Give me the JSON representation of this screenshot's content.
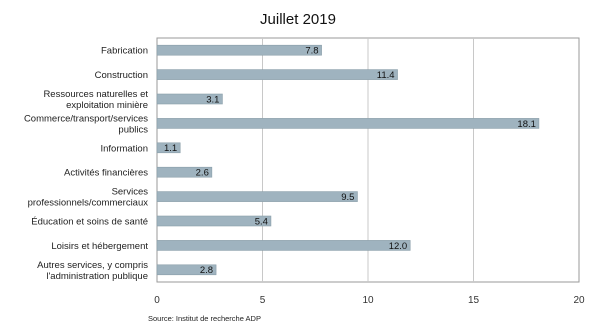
{
  "chart_data": {
    "type": "bar",
    "orientation": "horizontal",
    "title": "Juillet 2019",
    "categories": [
      [
        "Fabrication"
      ],
      [
        "Construction"
      ],
      [
        "Ressources naturelles et",
        "exploitation minière"
      ],
      [
        "Commerce/transport/services",
        "publics"
      ],
      [
        "Information"
      ],
      [
        "Activités financières"
      ],
      [
        "Services",
        "professionnels/commerciaux"
      ],
      [
        "Éducation et soins de santé"
      ],
      [
        "Loisirs et hébergement"
      ],
      [
        "Autres services, y compris",
        "l'administration publique"
      ]
    ],
    "values": [
      7.8,
      11.4,
      3.1,
      18.1,
      1.1,
      2.6,
      9.5,
      5.4,
      12.0,
      2.8
    ],
    "value_labels": [
      "7.8",
      "11.4",
      "3.1",
      "18.1",
      "1.1",
      "2.6",
      "9.5",
      "5.4",
      "12.0",
      "2.8"
    ],
    "xlim": [
      0,
      20
    ],
    "xticks": [
      "0",
      "5",
      "10",
      "15",
      "20"
    ],
    "grid": true,
    "bar_color": "#9fb3bf",
    "source": "Source: Institut de recherche ADP"
  }
}
